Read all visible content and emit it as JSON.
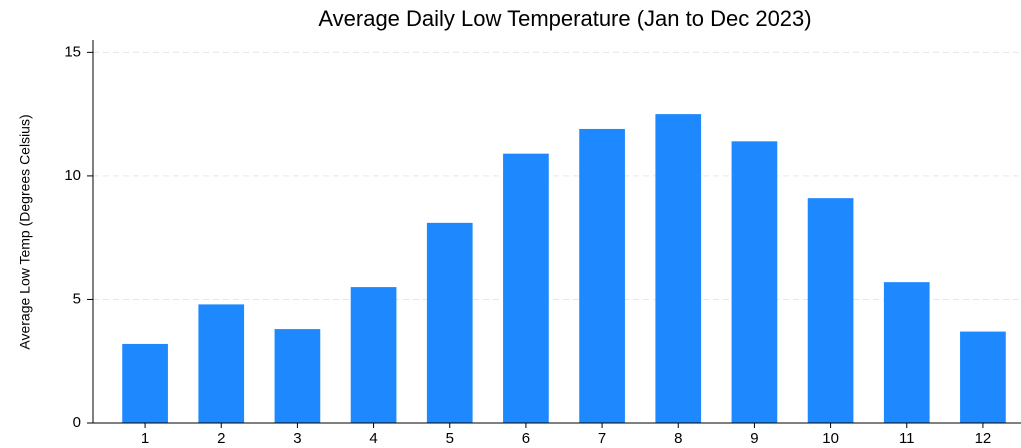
{
  "chart_data": {
    "type": "bar",
    "title": "Average Daily Low Temperature (Jan to Dec 2023)",
    "y_label": "Average Low Temp (Degrees Celsius)",
    "categories": [
      "1",
      "2",
      "3",
      "4",
      "5",
      "6",
      "7",
      "8",
      "9",
      "10",
      "11",
      "12"
    ],
    "values": [
      3.2,
      4.8,
      3.8,
      5.5,
      8.1,
      10.9,
      11.9,
      12.5,
      11.4,
      9.1,
      5.7,
      3.7
    ],
    "color": "#1e88ff",
    "ylim": [
      0,
      15.5
    ],
    "yticks": [
      0,
      5,
      10,
      15
    ],
    "grid": true
  }
}
